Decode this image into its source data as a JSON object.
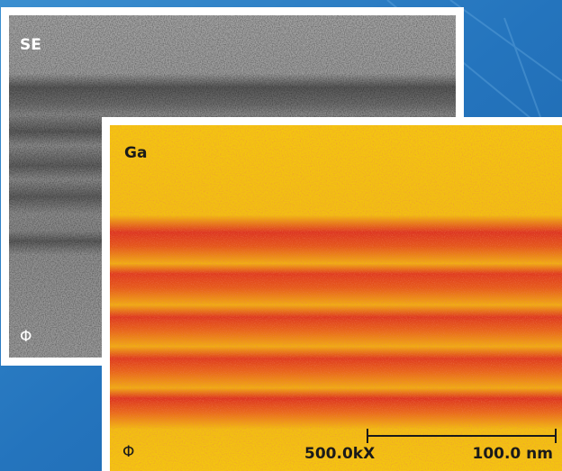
{
  "se_panel": {
    "label": "SE",
    "symbol": "Φ"
  },
  "ga_panel": {
    "label": "Ga",
    "symbol": "Φ",
    "magnification": "500.0kX",
    "scale_bar": "100.0 nm"
  }
}
